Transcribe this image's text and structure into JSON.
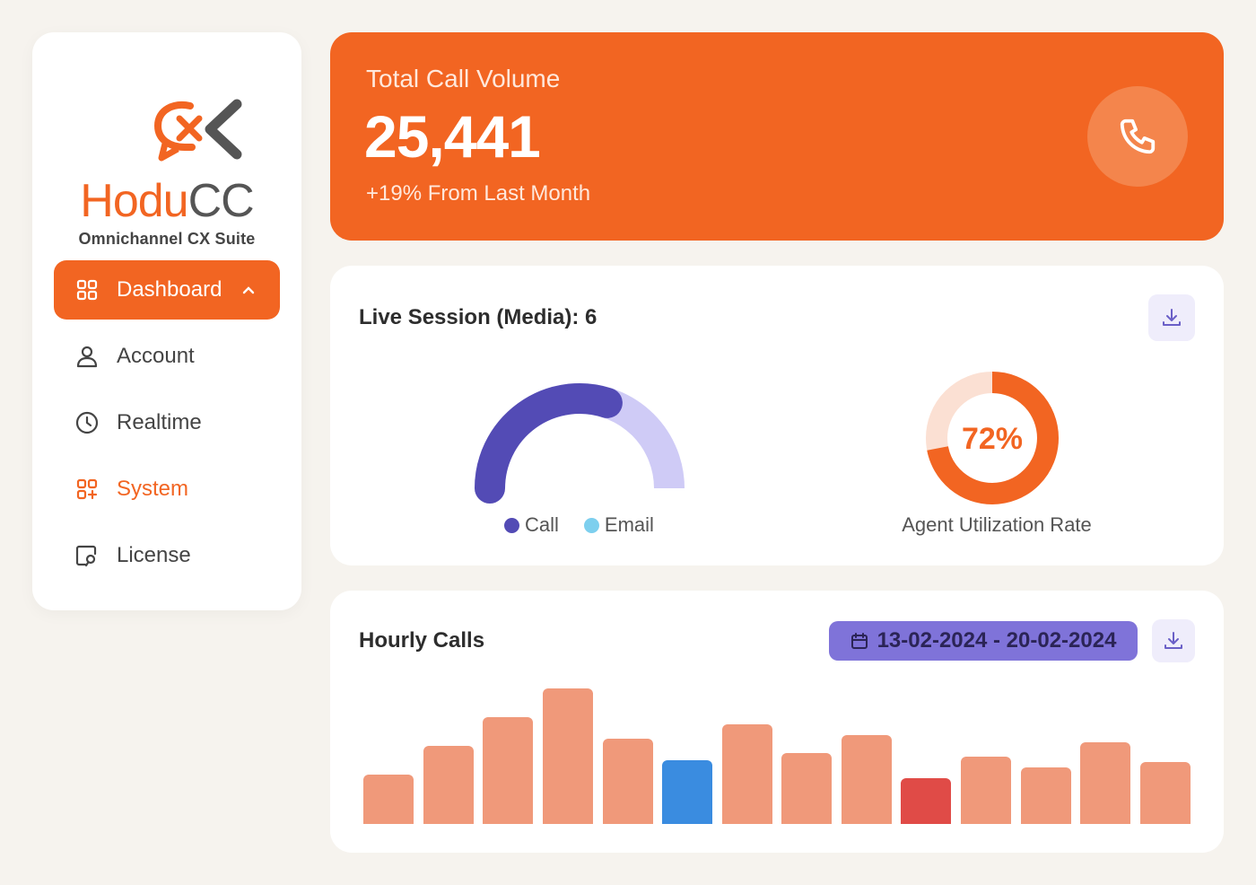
{
  "brand": {
    "name_part1": "Hodu",
    "name_part2": "CC",
    "tagline": "Omnichannel CX Suite",
    "color_primary": "#f26522",
    "color_secondary": "#555555"
  },
  "sidebar": {
    "items": [
      {
        "label": "Dashboard",
        "icon": "grid-icon",
        "active": true
      },
      {
        "label": "Account",
        "icon": "user-icon"
      },
      {
        "label": "Realtime",
        "icon": "clock-icon"
      },
      {
        "label": "System",
        "icon": "apps-plus-icon"
      },
      {
        "label": "License",
        "icon": "license-icon"
      }
    ]
  },
  "volume": {
    "title": "Total Call Volume",
    "value": "25,441",
    "change": "+19% From Last Month",
    "icon": "phone-icon"
  },
  "live_session": {
    "title": "Live Session (Media): 6",
    "legend": [
      {
        "label": "Call",
        "color": "#534bb5"
      },
      {
        "label": "Email",
        "color": "#7dcfee"
      }
    ],
    "utilization_value": "72%",
    "utilization_label": "Agent Utilization Rate"
  },
  "hourly": {
    "title": "Hourly Calls",
    "date_range": "13-02-2024 - 20-02-2024"
  },
  "chart_data": [
    {
      "type": "pie",
      "variant": "half-gauge",
      "series": [
        {
          "name": "Call",
          "value": 0.6,
          "color": "#534bb5"
        },
        {
          "name": "Email",
          "value": 0.4,
          "color": "#cfcbf6"
        }
      ]
    },
    {
      "type": "pie",
      "variant": "donut",
      "value": 72,
      "label": "72%",
      "colors": {
        "filled": "#f26522",
        "track": "#fbe0d3"
      }
    },
    {
      "type": "bar",
      "title": "Hourly Calls",
      "values": [
        55,
        87,
        119,
        151,
        95,
        71,
        111,
        79,
        99,
        51,
        75,
        63,
        91,
        69
      ],
      "colors": [
        "#f0997a",
        "#f0997a",
        "#f0997a",
        "#f0997a",
        "#f0997a",
        "#3a8ce0",
        "#f0997a",
        "#f0997a",
        "#f0997a",
        "#e04b47",
        "#f0997a",
        "#f0997a",
        "#f0997a",
        "#f0997a"
      ],
      "ylim": [
        0,
        160
      ]
    }
  ]
}
